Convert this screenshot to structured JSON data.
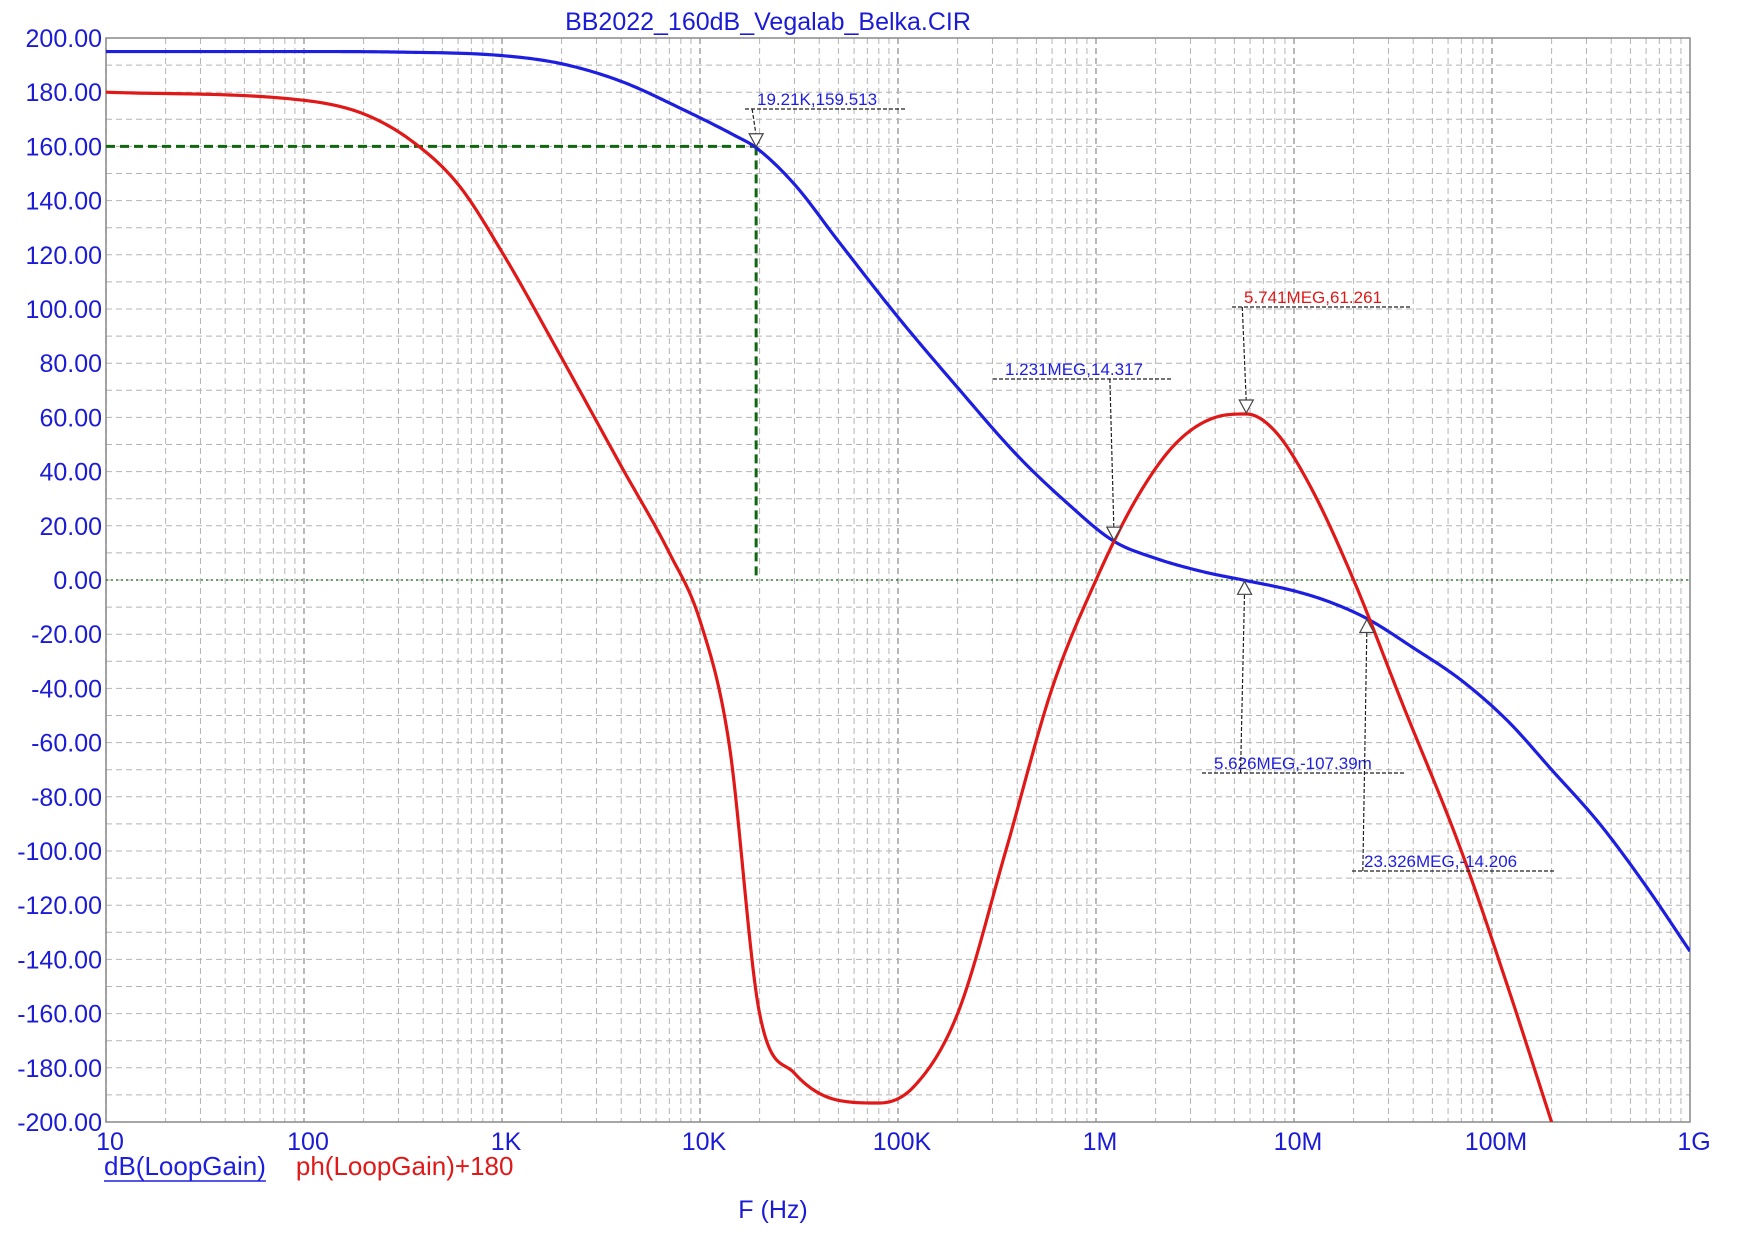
{
  "chart_data": {
    "type": "line",
    "title": "BB2022_160dB_Vegalab_Belka.CIR",
    "xlabel": "F (Hz)",
    "ylabel": "",
    "x_scale": "log",
    "xlim": [
      10,
      1000000000
    ],
    "ylim": [
      -200,
      200
    ],
    "grid": true,
    "x_tick_values": [
      10,
      100,
      1000,
      10000,
      100000,
      1000000,
      10000000,
      100000000,
      1000000000
    ],
    "x_tick_labels": [
      "10",
      "100",
      "1K",
      "10K",
      "100K",
      "1M",
      "10M",
      "100M",
      "1G"
    ],
    "y_tick_values": [
      200,
      180,
      160,
      140,
      120,
      100,
      80,
      60,
      40,
      20,
      0,
      -20,
      -40,
      -60,
      -80,
      -100,
      -120,
      -140,
      -160,
      -180,
      -200
    ],
    "y_tick_labels": [
      "200.00",
      "180.00",
      "160.00",
      "140.00",
      "120.00",
      "100.00",
      "80.00",
      "60.00",
      "40.00",
      "20.00",
      "0.00",
      "-20.00",
      "-40.00",
      "-60.00",
      "-80.00",
      "-100.00",
      "-120.00",
      "-140.00",
      "-160.00",
      "-180.00",
      "-200.00"
    ],
    "series": [
      {
        "name": "dB(LoopGain)",
        "color": "#1e1ee0",
        "x": [
          10,
          100,
          300,
          1000,
          2000,
          4000,
          8000,
          15000,
          19210,
          30000,
          50000,
          100000,
          200000,
          400000,
          700000,
          1231000,
          2000000,
          3500000,
          5626000,
          10000000,
          15000000,
          23326000,
          40000000,
          70000000,
          120000000,
          200000000,
          350000000,
          600000000,
          1000000000
        ],
        "values": [
          195,
          195,
          194.8,
          193.5,
          190.5,
          184,
          174,
          164,
          159.513,
          146,
          125,
          97,
          71,
          46,
          29,
          14.317,
          8,
          3,
          -0.107,
          -4,
          -8,
          -14.206,
          -25,
          -37,
          -52,
          -70,
          -90,
          -113,
          -137
        ]
      },
      {
        "name": "ph(LoopGain)+180",
        "color": "#e01818",
        "x": [
          10,
          100,
          200,
          350,
          600,
          1000,
          2000,
          4000,
          7000,
          10000,
          14000,
          20000,
          30000,
          50000,
          80000,
          120000,
          200000,
          350000,
          600000,
          1000000,
          1600000,
          2500000,
          4000000,
          5741000,
          8000000,
          12000000,
          20000000,
          35000000,
          70000000,
          120000000,
          200000000
        ],
        "values": [
          180,
          177,
          172,
          162,
          146,
          121,
          82,
          42,
          10,
          -15,
          -60,
          -160,
          -182,
          -192,
          -193,
          -187,
          -160,
          -100,
          -40,
          0,
          30,
          50,
          60,
          61.261,
          55,
          35,
          0,
          -45,
          -100,
          -150,
          -200
        ]
      }
    ],
    "reference_lines": [
      {
        "orientation": "horizontal",
        "y": 160,
        "x_from": 10,
        "x_to": 19210,
        "color": "#116611",
        "style": "dashed"
      },
      {
        "orientation": "vertical",
        "x": 19210,
        "y_from": 160,
        "y_to": 0,
        "color": "#116611",
        "style": "dashed"
      },
      {
        "orientation": "horizontal",
        "y": 0,
        "color": "#116611",
        "style": "dotted"
      }
    ],
    "annotations": [
      {
        "text": "19.21K,159.513",
        "x": 19210,
        "y": 159.513,
        "color": "#1e1ee0"
      },
      {
        "text": "1.231MEG,14.317",
        "x": 1231000,
        "y": 14.317,
        "color": "#1e1ee0"
      },
      {
        "text": "5.741MEG,61.261",
        "x": 5741000,
        "y": 61.261,
        "color": "#e01818"
      },
      {
        "text": "5.626MEG,-107.39m",
        "x": 5626000,
        "y": -0.107,
        "color": "#1e1ee0"
      },
      {
        "text": "23.326MEG,-14.206",
        "x": 23326000,
        "y": -14.206,
        "color": "#1e1ee0"
      }
    ],
    "legend": [
      {
        "label": "dB(LoopGain)",
        "color": "#1e1ee0",
        "underline": true
      },
      {
        "label": "ph(LoopGain)+180",
        "color": "#e01818",
        "underline": false
      }
    ],
    "legend_position": "bottom-left"
  }
}
